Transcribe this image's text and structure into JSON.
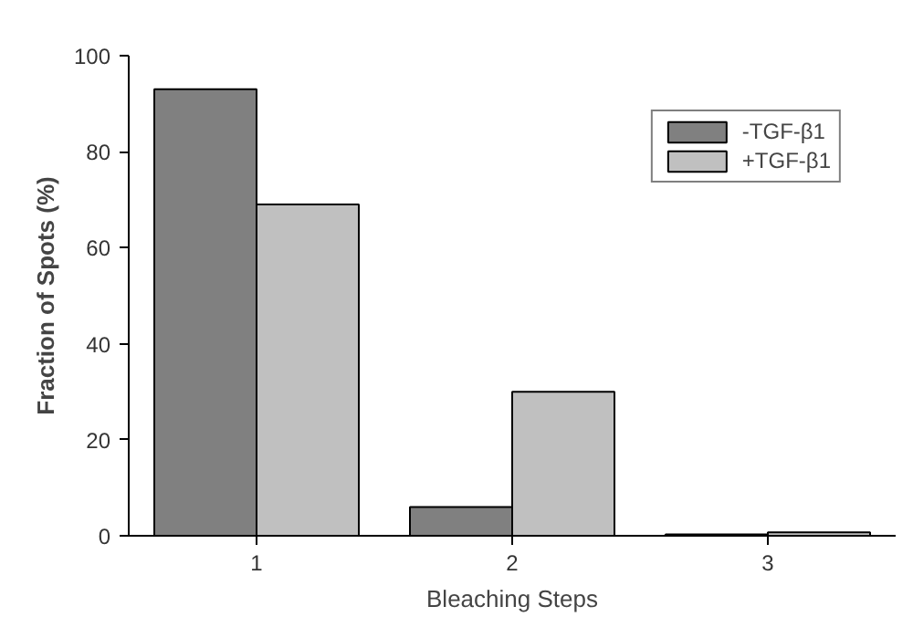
{
  "chart_data": {
    "type": "bar",
    "xlabel": "Bleaching Steps",
    "ylabel": "Fraction of Spots (%)",
    "x": [
      1,
      2,
      3
    ],
    "xlim": [
      0.5,
      3.5
    ],
    "xticks": [
      1,
      2,
      3
    ],
    "ylim": [
      0,
      100
    ],
    "yticks": [
      0,
      20,
      40,
      60,
      80,
      100
    ],
    "series": [
      {
        "name": "-TGF-β1",
        "color": "#808080",
        "values": [
          93,
          6,
          0.3
        ]
      },
      {
        "name": "+TGF-β1",
        "color": "#c0c0c0",
        "values": [
          69,
          30,
          0.7
        ]
      }
    ],
    "grid": false,
    "legend": "top right"
  }
}
